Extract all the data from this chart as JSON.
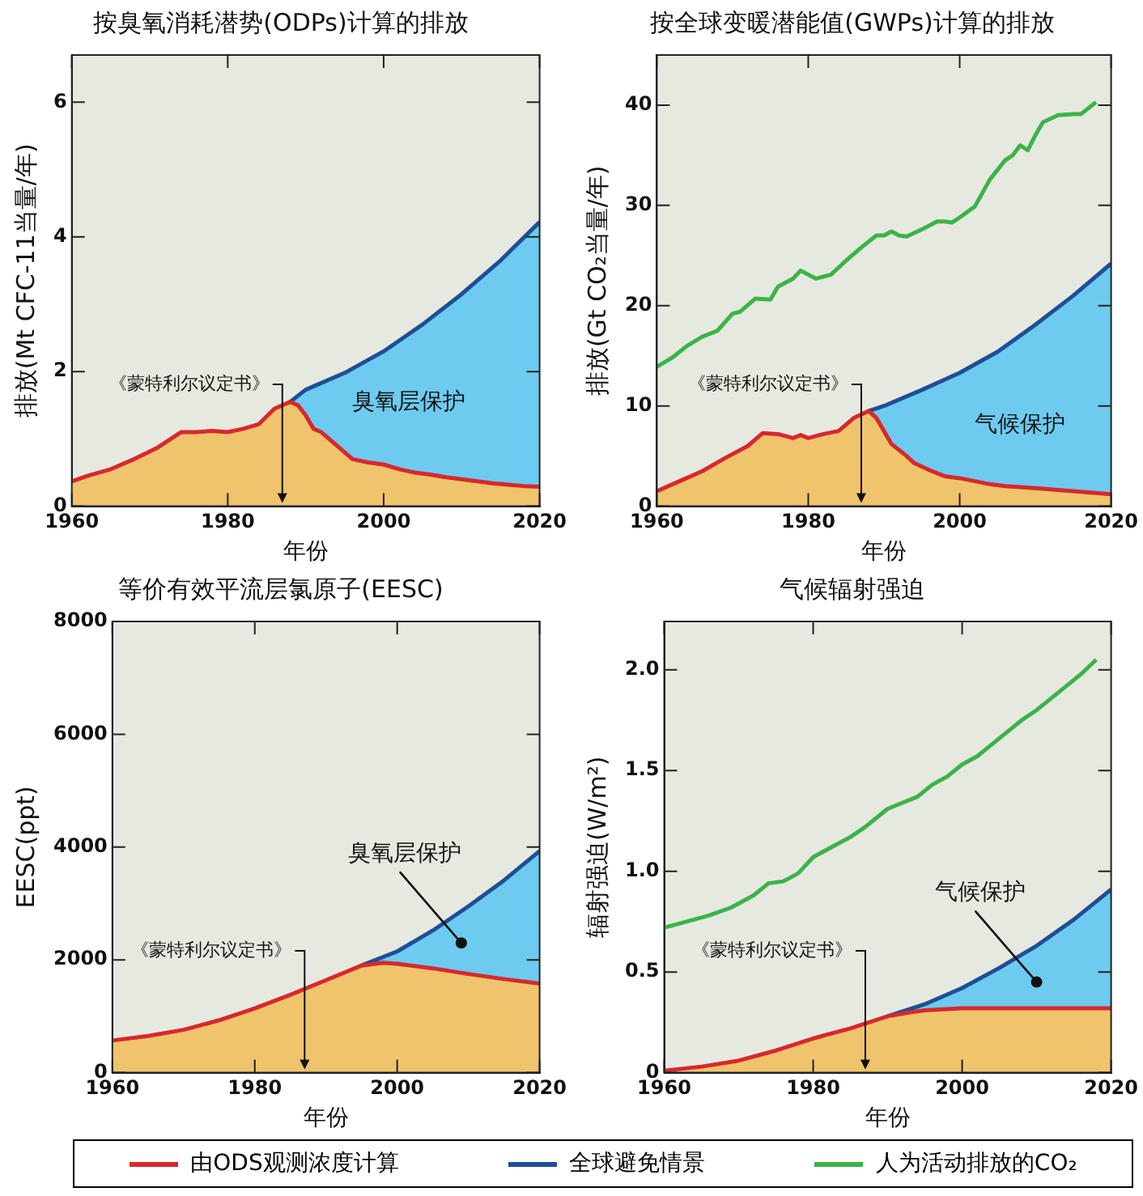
{
  "chart_data": [
    {
      "type": "line",
      "title": "按臭氧消耗潜势(ODPs)计算的排放",
      "xlabel": "年份",
      "ylabel": "排放(Mt CFC-11当量/年)",
      "xlim": [
        1960,
        2020
      ],
      "xticks": [
        1960,
        1980,
        2000,
        2020
      ],
      "ylim": [
        0,
        6.7
      ],
      "yticks": [
        0,
        2,
        4,
        6
      ],
      "grid": false,
      "legend": false,
      "series": [
        {
          "type": "area",
          "color": "#d7282f",
          "x": [
            1960,
            1962,
            1965,
            1968,
            1971,
            1974,
            1976,
            1978,
            1980,
            1982,
            1984,
            1986,
            1988,
            1989,
            1990,
            1991,
            1992,
            1994,
            1996,
            1998,
            2000,
            2002,
            2004,
            2006,
            2008,
            2010,
            2012,
            2014,
            2016,
            2018,
            2020
          ],
          "values": [
            0.37,
            0.45,
            0.55,
            0.7,
            0.87,
            1.1,
            1.1,
            1.12,
            1.1,
            1.15,
            1.22,
            1.45,
            1.55,
            1.5,
            1.35,
            1.15,
            1.1,
            0.9,
            0.7,
            0.65,
            0.62,
            0.55,
            0.5,
            0.47,
            0.43,
            0.4,
            0.37,
            0.34,
            0.32,
            0.3,
            0.29
          ]
        },
        {
          "type": "area",
          "color": "#1f4e96",
          "x": [
            1988,
            1990,
            1995,
            2000,
            2005,
            2010,
            2015,
            2020
          ],
          "values": [
            1.55,
            1.73,
            1.98,
            2.3,
            2.7,
            3.15,
            3.65,
            4.22
          ]
        }
      ],
      "annotations": [
        {
          "text": "《蒙特利尔议定书》",
          "x": 1987,
          "y": 0
        },
        "臭氧层保护"
      ]
    },
    {
      "type": "line",
      "title": "按全球变暖潜能值(GWPs)计算的排放",
      "xlabel": "年份",
      "ylabel": "排放(Gt CO₂当量/年)",
      "xlim": [
        1960,
        2020
      ],
      "xticks": [
        1960,
        1980,
        2000,
        2020
      ],
      "ylim": [
        0,
        45
      ],
      "yticks": [
        0,
        10,
        20,
        30,
        40
      ],
      "grid": false,
      "legend": false,
      "series": [
        {
          "type": "area",
          "color": "#d7282f",
          "x": [
            1960,
            1963,
            1966,
            1969,
            1972,
            1974,
            1976,
            1978,
            1979,
            1980,
            1982,
            1984,
            1986,
            1988,
            1989,
            1990,
            1991,
            1993,
            1994,
            1996,
            1998,
            2000,
            2002,
            2004,
            2006,
            2010,
            2015,
            2020
          ],
          "values": [
            1.5,
            2.5,
            3.5,
            4.8,
            6,
            7.3,
            7.2,
            6.8,
            7.1,
            6.8,
            7.2,
            7.5,
            8.8,
            9.5,
            8.8,
            7.5,
            6.2,
            5,
            4.3,
            3.6,
            3,
            2.8,
            2.5,
            2.2,
            2,
            1.8,
            1.5,
            1.2
          ]
        },
        {
          "type": "area",
          "color": "#1f4e96",
          "x": [
            1988,
            1990,
            1995,
            2000,
            2005,
            2010,
            2015,
            2020
          ],
          "values": [
            9.5,
            10,
            11.6,
            13.3,
            15.4,
            18.1,
            21,
            24.2
          ]
        },
        {
          "type": "line",
          "color": "#3bb34a",
          "x": [
            1960,
            1962,
            1964,
            1966,
            1968,
            1970,
            1971,
            1973,
            1975,
            1976,
            1978,
            1979,
            1981,
            1983,
            1985,
            1987,
            1989,
            1990,
            1991,
            1992,
            1993,
            1995,
            1997,
            1998,
            1999,
            2000,
            2002,
            2004,
            2006,
            2007,
            2008,
            2009,
            2010,
            2011,
            2013,
            2015,
            2016,
            2018
          ],
          "values": [
            13.9,
            14.8,
            16,
            16.9,
            17.5,
            19.2,
            19.4,
            20.7,
            20.6,
            21.9,
            22.7,
            23.5,
            22.7,
            23.1,
            24.5,
            25.8,
            27,
            27,
            27.4,
            27,
            26.9,
            27.6,
            28.4,
            28.4,
            28.3,
            28.8,
            29.9,
            32.6,
            34.5,
            35,
            36,
            35.5,
            37,
            38.3,
            39,
            39.1,
            39.1,
            40.3
          ]
        }
      ],
      "annotations": [
        {
          "text": "《蒙特利尔议定书》",
          "x": 1987,
          "y": 0
        },
        "气候保护"
      ]
    },
    {
      "type": "line",
      "title": "等价有效平流层氯原子(EESC)",
      "xlabel": "年份",
      "ylabel": "EESC(ppt)",
      "xlim": [
        1960,
        2020
      ],
      "xticks": [
        1960,
        1980,
        2000,
        2020
      ],
      "ylim": [
        0,
        8000
      ],
      "yticks": [
        0,
        2000,
        4000,
        6000,
        8000
      ],
      "grid": false,
      "legend": false,
      "series": [
        {
          "type": "area",
          "color": "#d7282f",
          "x": [
            1960,
            1965,
            1970,
            1975,
            1980,
            1985,
            1990,
            1995,
            1998,
            2000,
            2005,
            2010,
            2015,
            2020
          ],
          "values": [
            570,
            650,
            760,
            930,
            1140,
            1380,
            1640,
            1900,
            1950,
            1930,
            1850,
            1750,
            1660,
            1580
          ]
        },
        {
          "type": "area",
          "color": "#1f4e96",
          "x": [
            1995,
            2000,
            2005,
            2010,
            2015,
            2020
          ],
          "values": [
            1900,
            2150,
            2520,
            2950,
            3410,
            3930
          ]
        }
      ],
      "annotations": [
        {
          "text": "《蒙特利尔议定书》",
          "x": 1987,
          "y": 0
        },
        {
          "text": "臭氧层保护",
          "x": 2009,
          "y": 2300
        }
      ]
    },
    {
      "type": "line",
      "title": "气候辐射强迫",
      "xlabel": "年份",
      "ylabel": "辐射强迫(W/m²)",
      "xlim": [
        1960,
        2020
      ],
      "xticks": [
        1960,
        1980,
        2000,
        2020
      ],
      "ylim": [
        0,
        2.24
      ],
      "yticks": [
        {
          "value": 0,
          "label": "0"
        },
        {
          "value": 0.5,
          "label": "0.5"
        },
        {
          "value": 1,
          "label": "1.0"
        },
        {
          "value": 1.5,
          "label": "1.5"
        },
        {
          "value": 2,
          "label": "2.0"
        }
      ],
      "grid": false,
      "legend": "bottom",
      "series": [
        {
          "type": "area",
          "name": "由ODS观测浓度计算",
          "color": "#d7282f",
          "x": [
            1960,
            1965,
            1970,
            1975,
            1980,
            1985,
            1990,
            1993,
            1995,
            2000,
            2010,
            2020
          ],
          "values": [
            0.01,
            0.03,
            0.06,
            0.11,
            0.17,
            0.22,
            0.28,
            0.3,
            0.31,
            0.32,
            0.32,
            0.32
          ]
        },
        {
          "type": "area",
          "name": "全球避免情景",
          "color": "#1f4e96",
          "x": [
            1990,
            1995,
            2000,
            2005,
            2010,
            2015,
            2020
          ],
          "values": [
            0.28,
            0.34,
            0.42,
            0.52,
            0.63,
            0.76,
            0.91
          ]
        },
        {
          "type": "line",
          "name": "人为活动排放的CO₂",
          "color": "#3bb34a",
          "x": [
            1960,
            1963,
            1966,
            1969,
            1972,
            1974,
            1976,
            1978,
            1980,
            1982,
            1985,
            1987,
            1990,
            1992,
            1994,
            1996,
            1998,
            2000,
            2002,
            2004,
            2006,
            2008,
            2010,
            2012,
            2014,
            2016,
            2018
          ],
          "values": [
            0.72,
            0.75,
            0.78,
            0.82,
            0.88,
            0.94,
            0.95,
            0.99,
            1.07,
            1.11,
            1.17,
            1.22,
            1.31,
            1.34,
            1.37,
            1.43,
            1.47,
            1.53,
            1.57,
            1.63,
            1.69,
            1.75,
            1.8,
            1.86,
            1.92,
            1.98,
            2.05
          ]
        }
      ],
      "annotations": [
        {
          "text": "《蒙特利尔议定书》",
          "x": 1987,
          "y": 0
        },
        {
          "text": "气候保护",
          "x": 2010,
          "y": 0.45
        }
      ]
    }
  ]
}
